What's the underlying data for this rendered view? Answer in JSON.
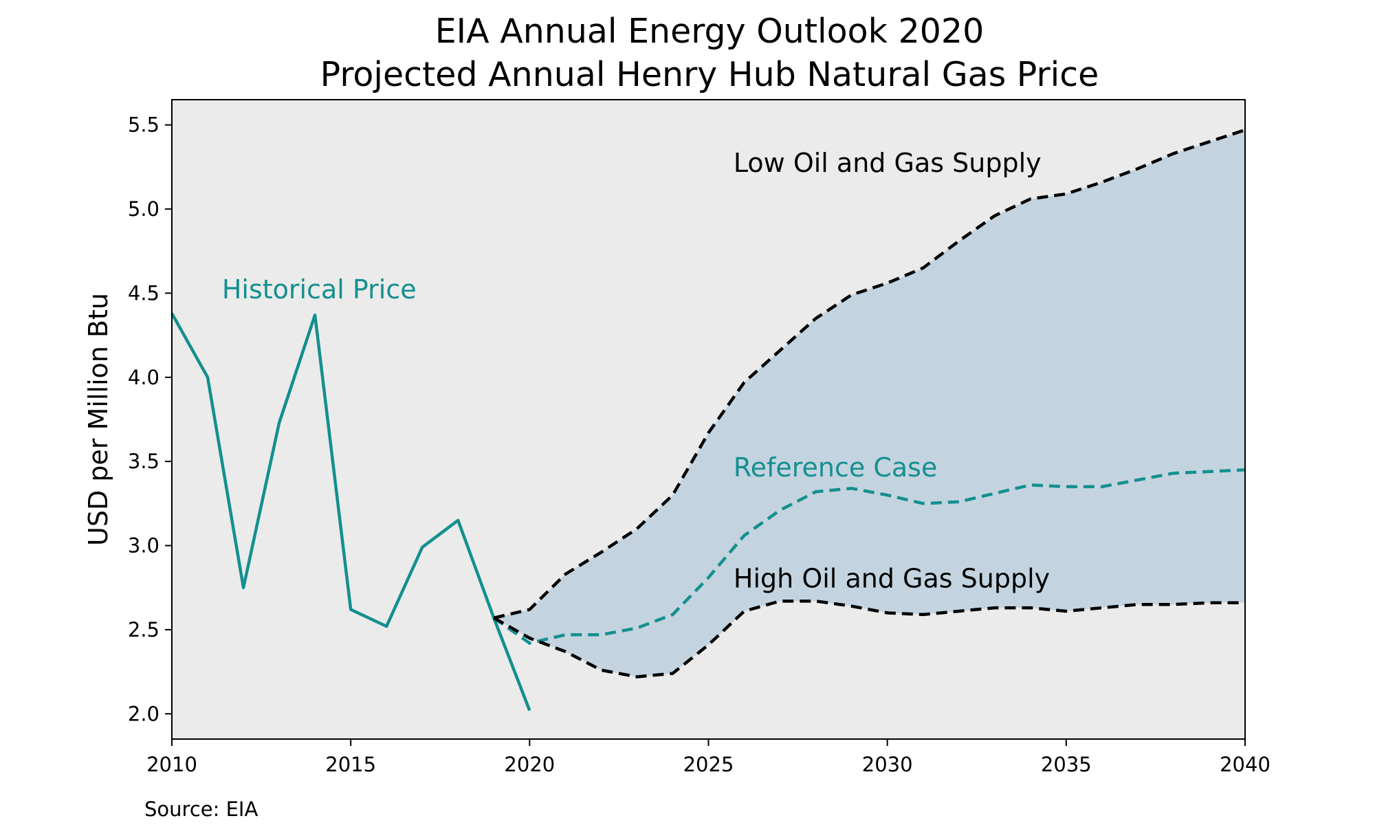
{
  "chart_data": {
    "type": "line",
    "title": [
      "EIA Annual Energy Outlook 2020",
      "Projected Annual Henry Hub Natural Gas Price"
    ],
    "xlabel": "",
    "ylabel": "USD per Million Btu",
    "xlim": [
      2010,
      2040
    ],
    "ylim": [
      1.85,
      5.65
    ],
    "x_ticks": [
      "2010",
      "2015",
      "2020",
      "2025",
      "2030",
      "2035",
      "2040"
    ],
    "y_ticks": [
      "2.0",
      "2.5",
      "3.0",
      "3.5",
      "4.0",
      "4.5",
      "5.0",
      "5.5"
    ],
    "grid": false,
    "background_color": "#ebebeb",
    "band_color": "#c3d4e0",
    "series": [
      {
        "name": "Historical Price",
        "color": "#148f8f",
        "style": "solid",
        "x": [
          2010,
          2011,
          2012,
          2013,
          2014,
          2015,
          2016,
          2017,
          2018,
          2019,
          2020
        ],
        "values": [
          4.38,
          4.0,
          2.75,
          3.73,
          4.37,
          2.62,
          2.52,
          2.99,
          3.15,
          2.57,
          2.02
        ]
      },
      {
        "name": "Reference Case",
        "color": "#148f8f",
        "style": "dashed",
        "x": [
          2019,
          2020,
          2021,
          2022,
          2023,
          2024,
          2025,
          2026,
          2027,
          2028,
          2029,
          2030,
          2031,
          2032,
          2033,
          2034,
          2035,
          2036,
          2037,
          2038,
          2039,
          2040
        ],
        "values": [
          2.57,
          2.42,
          2.47,
          2.47,
          2.51,
          2.59,
          2.81,
          3.06,
          3.21,
          3.32,
          3.34,
          3.3,
          3.25,
          3.26,
          3.31,
          3.36,
          3.35,
          3.35,
          3.39,
          3.43,
          3.44,
          3.45
        ]
      },
      {
        "name": "Low Oil and Gas Supply",
        "color": "#000000",
        "style": "dashed",
        "x": [
          2019,
          2020,
          2021,
          2022,
          2023,
          2024,
          2025,
          2026,
          2027,
          2028,
          2029,
          2030,
          2031,
          2032,
          2033,
          2034,
          2035,
          2036,
          2037,
          2038,
          2039,
          2040
        ],
        "values": [
          2.57,
          2.62,
          2.83,
          2.96,
          3.1,
          3.3,
          3.67,
          3.97,
          4.16,
          4.35,
          4.49,
          4.56,
          4.65,
          4.81,
          4.96,
          5.06,
          5.09,
          5.16,
          5.24,
          5.33,
          5.4,
          5.47
        ]
      },
      {
        "name": "High Oil and Gas Supply",
        "color": "#000000",
        "style": "dashed",
        "x": [
          2019,
          2020,
          2021,
          2022,
          2023,
          2024,
          2025,
          2026,
          2027,
          2028,
          2029,
          2030,
          2031,
          2032,
          2033,
          2034,
          2035,
          2036,
          2037,
          2038,
          2039,
          2040
        ],
        "values": [
          2.57,
          2.45,
          2.37,
          2.26,
          2.22,
          2.24,
          2.41,
          2.61,
          2.67,
          2.67,
          2.64,
          2.6,
          2.59,
          2.61,
          2.63,
          2.63,
          2.61,
          2.63,
          2.65,
          2.65,
          2.66,
          2.66
        ]
      }
    ],
    "annotations": [
      {
        "text": "Historical Price",
        "x": 2011.4,
        "y": 4.47,
        "color": "#148f8f"
      },
      {
        "text": "Low Oil and Gas Supply",
        "x": 2025.7,
        "y": 5.22,
        "color": "#000000"
      },
      {
        "text": "Reference Case",
        "x": 2025.7,
        "y": 3.41,
        "color": "#148f8f"
      },
      {
        "text": "High Oil and Gas Supply",
        "x": 2025.7,
        "y": 2.75,
        "color": "#000000"
      }
    ],
    "source": "Source: EIA"
  }
}
